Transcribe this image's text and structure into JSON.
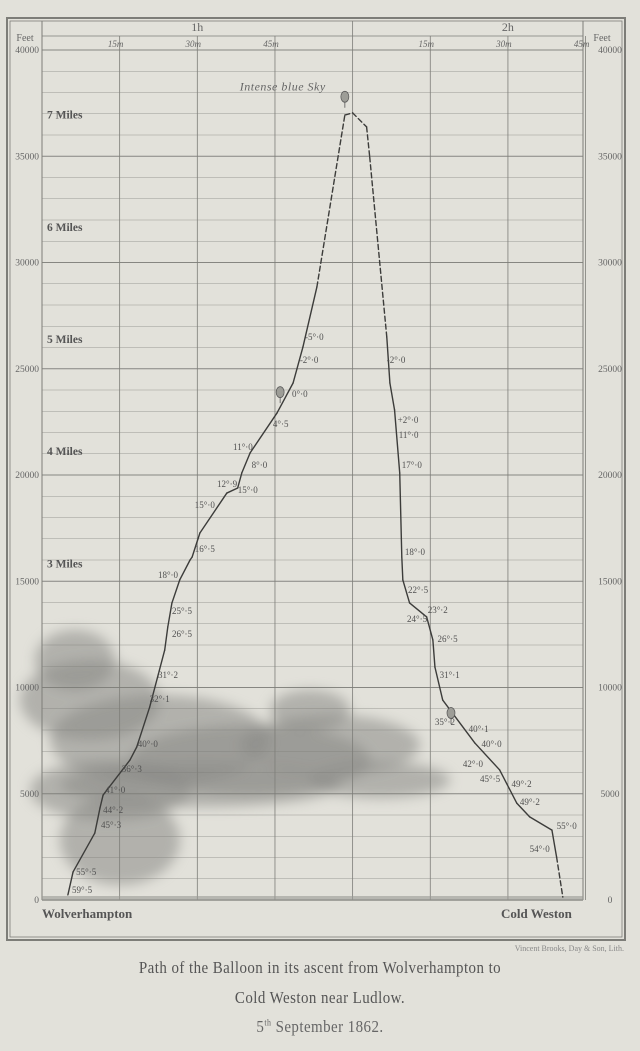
{
  "chart_data": {
    "type": "line",
    "title": "Path of the Balloon in its ascent from Wolverhampton to Cold Weston near Ludlow.",
    "date": {
      "day": "5",
      "suffix": "th",
      "rest": "September 1862."
    },
    "caption_lines": [
      "Path of the Balloon in its ascent from Wolverhampton to",
      "Cold Weston near Ludlow."
    ],
    "x_axis": {
      "units": "minutes after 1h",
      "range": [
        0,
        105
      ],
      "hour_labels": [
        {
          "label": "1h",
          "t": 30
        },
        {
          "label": "2h",
          "t": 90
        }
      ],
      "ticks": [
        {
          "t": 15,
          "label": "15m"
        },
        {
          "t": 30,
          "label": "30m"
        },
        {
          "t": 45,
          "label": "45m"
        },
        {
          "t": 60,
          "label": ""
        },
        {
          "t": 75,
          "label": "15m"
        },
        {
          "t": 90,
          "label": "30m"
        },
        {
          "t": 105,
          "label": "45m"
        }
      ],
      "start_label": "Wolverhampton",
      "end_label": "Cold Weston"
    },
    "y_axis": {
      "label": "Feet",
      "range": [
        0,
        40000
      ],
      "ticks": [
        0,
        5000,
        10000,
        15000,
        20000,
        25000,
        30000,
        35000,
        40000
      ],
      "tick_labels": [
        "0",
        "5000",
        "10000",
        "15000",
        "20000",
        "25000",
        "30000",
        "35000",
        "40000"
      ],
      "minor_step": 1000,
      "grid": true,
      "mile_labels": [
        {
          "label": "3 Miles",
          "feet": 15840
        },
        {
          "label": "4 Miles",
          "feet": 21120
        },
        {
          "label": "5 Miles",
          "feet": 26400
        },
        {
          "label": "6 Miles",
          "feet": 31680
        },
        {
          "label": "7 Miles",
          "feet": 36960
        }
      ]
    },
    "series": [
      {
        "points": [
          [
            5.0,
            240
          ],
          [
            6.0,
            1320
          ],
          [
            10.2,
            3150
          ],
          [
            11.2,
            4330
          ],
          [
            11.8,
            4940
          ],
          [
            17.0,
            6590
          ],
          [
            18.3,
            7200
          ],
          [
            20.8,
            9080
          ],
          [
            23.7,
            11760
          ],
          [
            24.3,
            12850
          ],
          [
            25.1,
            13980
          ],
          [
            26.6,
            15060
          ],
          [
            28.6,
            16000
          ],
          [
            29.0,
            16140
          ],
          [
            30.5,
            17270
          ],
          [
            35.7,
            19150
          ],
          [
            37.8,
            19390
          ],
          [
            38.6,
            20100
          ],
          [
            40.2,
            21040
          ],
          [
            45.4,
            22920
          ],
          [
            48.5,
            24330
          ],
          [
            50.4,
            26020
          ],
          [
            53.1,
            28850
          ],
          [
            58.5,
            36940
          ],
          [
            60.0,
            37040
          ],
          [
            62.7,
            36380
          ],
          [
            63.3,
            34970
          ],
          [
            66.6,
            26490
          ],
          [
            67.2,
            24330
          ],
          [
            68.1,
            23060
          ],
          [
            69.1,
            20090
          ],
          [
            69.5,
            16140
          ],
          [
            69.7,
            15060
          ],
          [
            71.0,
            13980
          ],
          [
            74.3,
            13320
          ],
          [
            75.5,
            12240
          ],
          [
            75.9,
            10960
          ],
          [
            77.4,
            9410
          ],
          [
            83.6,
            7390
          ],
          [
            88.4,
            6120
          ],
          [
            91.7,
            4560
          ],
          [
            94.2,
            3910
          ],
          [
            98.5,
            3290
          ],
          [
            99.4,
            2020
          ],
          [
            100.6,
            140
          ]
        ],
        "dashed_segments": [
          [
            53.1,
            66.6
          ],
          [
            99.4,
            100.6
          ]
        ]
      }
    ],
    "temperature_labels": [
      {
        "text": "59°·5",
        "t": 5.8,
        "alt": 330
      },
      {
        "text": "55°·5",
        "t": 6.6,
        "alt": 1180
      },
      {
        "text": "45°·3",
        "t": 11.4,
        "alt": 3390
      },
      {
        "text": "44°·2",
        "t": 11.8,
        "alt": 4090
      },
      {
        "text": "41°·0",
        "t": 12.2,
        "alt": 5040
      },
      {
        "text": "36°·3",
        "t": 15.4,
        "alt": 6020
      },
      {
        "text": "40°·0",
        "t": 18.5,
        "alt": 7200
      },
      {
        "text": "32°·1",
        "t": 20.8,
        "alt": 9320
      },
      {
        "text": "31°·2",
        "t": 22.4,
        "alt": 10450
      },
      {
        "text": "26°·5",
        "t": 25.1,
        "alt": 12380
      },
      {
        "text": "25°·5",
        "t": 25.1,
        "alt": 13460
      },
      {
        "text": "18°·0",
        "t": 22.4,
        "alt": 15150
      },
      {
        "text": "16°·5",
        "t": 29.5,
        "alt": 16380
      },
      {
        "text": "15°·0",
        "t": 29.5,
        "alt": 18450
      },
      {
        "text": "12°·9",
        "t": 33.8,
        "alt": 19440
      },
      {
        "text": "15°·0",
        "t": 37.8,
        "alt": 19150
      },
      {
        "text": "8°·0",
        "t": 40.5,
        "alt": 20330
      },
      {
        "text": "11°·0",
        "t": 36.9,
        "alt": 21180
      },
      {
        "text": "4°·5",
        "t": 44.6,
        "alt": 22260
      },
      {
        "text": "0°·0",
        "t": 48.3,
        "alt": 23670
      },
      {
        "text": "-2°·0",
        "t": 49.8,
        "alt": 25270
      },
      {
        "text": "-5°·0",
        "t": 50.8,
        "alt": 26350
      },
      {
        "text": "-2°·0",
        "t": 66.6,
        "alt": 25270
      },
      {
        "text": "+2°·0",
        "t": 68.7,
        "alt": 22450
      },
      {
        "text": "11°·0",
        "t": 68.9,
        "alt": 21740
      },
      {
        "text": "17°·0",
        "t": 69.5,
        "alt": 20330
      },
      {
        "text": "18°·0",
        "t": 70.1,
        "alt": 16240
      },
      {
        "text": "22°·5",
        "t": 70.7,
        "alt": 14450
      },
      {
        "text": "24°·5",
        "t": 70.5,
        "alt": 13080
      },
      {
        "text": "23°·2",
        "t": 74.5,
        "alt": 13510
      },
      {
        "text": "26°·5",
        "t": 76.4,
        "alt": 12140
      },
      {
        "text": "31°·1",
        "t": 76.8,
        "alt": 10450
      },
      {
        "text": "35°·2",
        "t": 75.9,
        "alt": 8240
      },
      {
        "text": "40°·1",
        "t": 82.4,
        "alt": 7910
      },
      {
        "text": "40°·0",
        "t": 84.9,
        "alt": 7200
      },
      {
        "text": "42°·0",
        "t": 81.3,
        "alt": 6260
      },
      {
        "text": "45°·5",
        "t": 84.6,
        "alt": 5550
      },
      {
        "text": "49°·2",
        "t": 90.7,
        "alt": 5320
      },
      {
        "text": "49°·2",
        "t": 92.3,
        "alt": 4470
      },
      {
        "text": "55°·0",
        "t": 99.4,
        "alt": 3340
      },
      {
        "text": "54°·0",
        "t": 94.2,
        "alt": 2260
      }
    ],
    "balloon_markers": [
      {
        "t": 58.5,
        "alt": 37800,
        "icon": "balloon-icon"
      },
      {
        "t": 46.0,
        "alt": 23900,
        "icon": "balloon-icon"
      },
      {
        "t": 79.0,
        "alt": 8800,
        "icon": "balloon-icon"
      }
    ],
    "annotations": [
      {
        "text": "Intense blue Sky",
        "t": 46.5,
        "alt": 38100
      }
    ]
  },
  "credit": "Vincent Brooks, Day & Son, Lith.",
  "colors": {
    "paper": "#e2e1da",
    "ink": "#4a4a48",
    "grid": "#7d7d78",
    "cloud": "#8b8b86"
  }
}
